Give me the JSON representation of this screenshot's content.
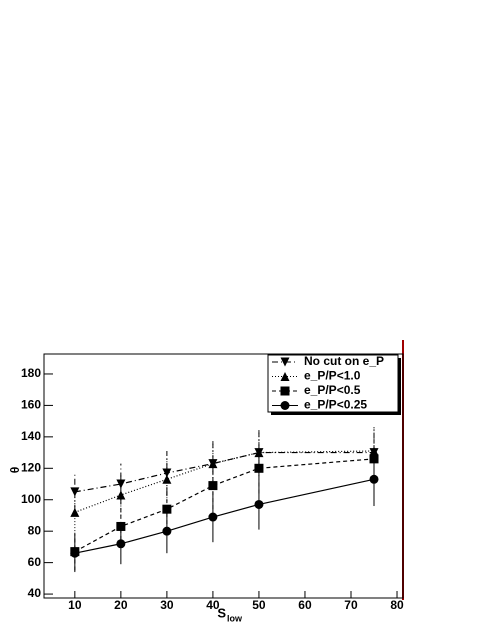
{
  "chart_data": {
    "type": "line",
    "x_label": "S",
    "x_label_sub": "low",
    "y_label": "θ",
    "x": [
      10,
      20,
      30,
      40,
      50,
      75
    ],
    "series": [
      {
        "name": "No cut on e_P",
        "color": "#000000",
        "marker": "triangle-down",
        "dash": "6 3 1 3",
        "values": [
          105,
          110,
          117,
          123,
          130,
          130
        ],
        "errors": [
          12,
          13,
          14,
          15,
          15,
          16
        ]
      },
      {
        "name": "e_P/P<1.0",
        "color": "#000000",
        "marker": "triangle-up",
        "dash": "1 2",
        "values": [
          92,
          103,
          113,
          123,
          130,
          131
        ],
        "errors": [
          12,
          13,
          14,
          15,
          15,
          16
        ]
      },
      {
        "name": "e_P/P<0.5",
        "color": "#000000",
        "marker": "square",
        "dash": "4 3",
        "values": [
          67,
          83,
          94,
          109,
          120,
          126
        ],
        "errors": [
          12,
          13,
          14,
          15,
          16,
          17
        ]
      },
      {
        "name": "e_P/P<0.25",
        "color": "#000000",
        "marker": "circle",
        "dash": "",
        "values": [
          66,
          72,
          80,
          89,
          97,
          113
        ],
        "errors": [
          12,
          13,
          14,
          16,
          16,
          17
        ]
      }
    ],
    "xlim": [
      3.3,
      81.3
    ],
    "xticks": [
      10,
      20,
      30,
      40,
      50,
      60,
      70,
      80
    ],
    "ylim": [
      37.5,
      192.7
    ],
    "yticks": [
      40,
      60,
      80,
      100,
      120,
      140,
      160,
      180
    ],
    "legend": "upper-right"
  }
}
